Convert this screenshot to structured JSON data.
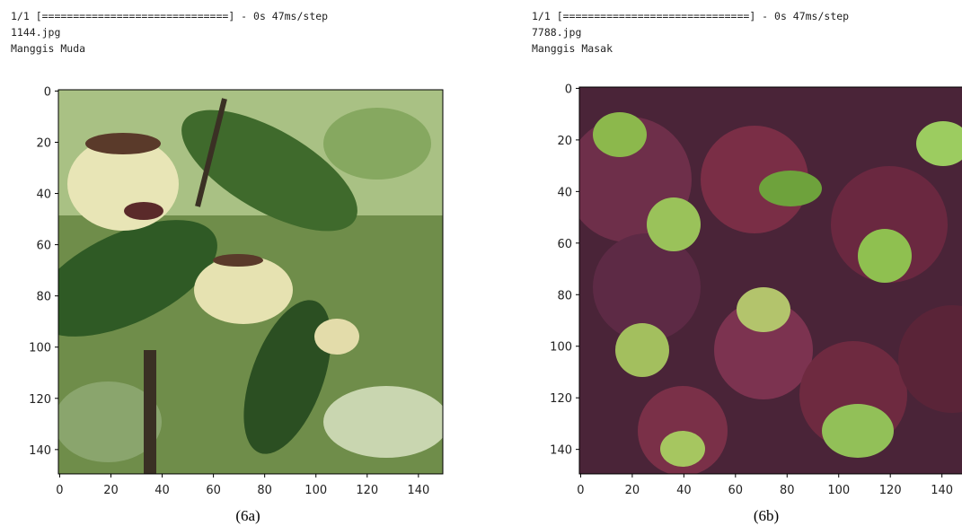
{
  "panels": [
    {
      "log": "1/1 [==============================] - 0s 47ms/step",
      "filename": "1144.jpg",
      "label": "Manggis Muda",
      "yticks": [
        0,
        20,
        40,
        60,
        80,
        100,
        120,
        140
      ],
      "xticks": [
        0,
        20,
        40,
        60,
        80,
        100,
        120,
        140
      ],
      "caption": "(6a)"
    },
    {
      "log": "1/1 [==============================] - 0s 47ms/step",
      "filename": "7788.jpg",
      "label": "Manggis Masak",
      "yticks": [
        0,
        20,
        40,
        60,
        80,
        100,
        120,
        140
      ],
      "xticks": [
        0,
        20,
        40,
        60,
        80,
        100,
        120,
        140
      ],
      "caption": "(6b)"
    }
  ]
}
